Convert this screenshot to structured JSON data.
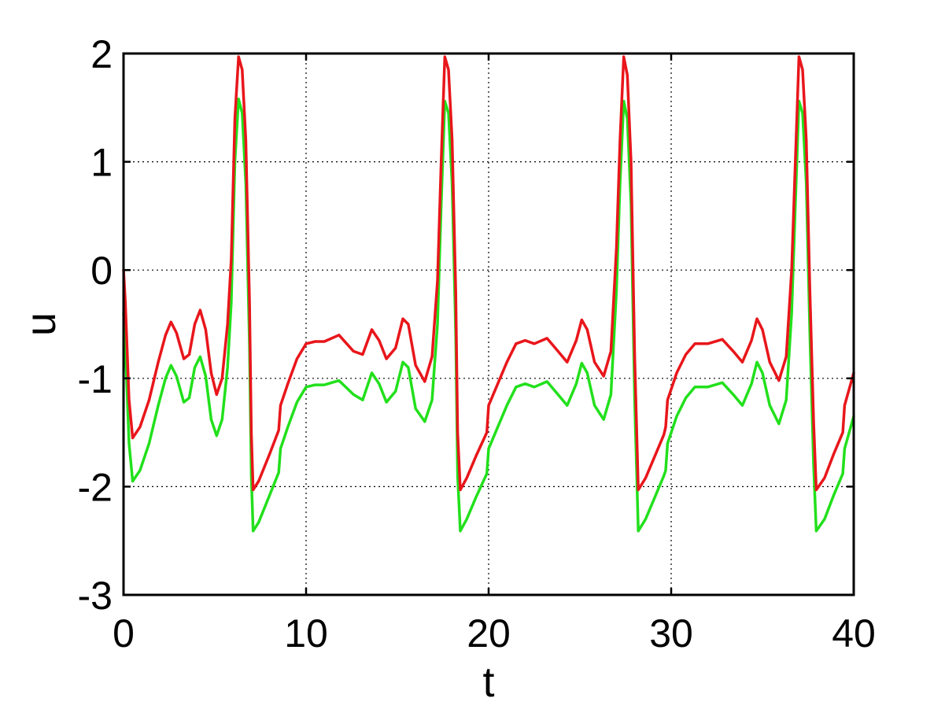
{
  "chart_data": {
    "type": "line",
    "title": "",
    "xlabel": "t",
    "ylabel": "u",
    "xlim": [
      0,
      40
    ],
    "ylim": [
      -3,
      2
    ],
    "xticks": [
      0,
      10,
      20,
      30,
      40
    ],
    "yticks": [
      -3,
      -2,
      -1,
      0,
      1,
      2
    ],
    "x_tick_labels": [
      "0",
      "10",
      "20",
      "30",
      "40"
    ],
    "y_tick_labels": [
      "-3",
      "-2",
      "-1",
      "0",
      "1",
      "2"
    ],
    "grid": true,
    "legend": "none",
    "series": [
      {
        "color": "#e8161b",
        "points": [
          [
            0,
            0
          ],
          [
            0.1,
            -0.3
          ],
          [
            0.3,
            -1.2
          ],
          [
            0.5,
            -1.55
          ],
          [
            0.9,
            -1.45
          ],
          [
            1.4,
            -1.2
          ],
          [
            1.9,
            -0.85
          ],
          [
            2.3,
            -0.6
          ],
          [
            2.6,
            -0.48
          ],
          [
            2.9,
            -0.58
          ],
          [
            3.3,
            -0.82
          ],
          [
            3.6,
            -0.78
          ],
          [
            3.9,
            -0.5
          ],
          [
            4.2,
            -0.37
          ],
          [
            4.5,
            -0.55
          ],
          [
            4.8,
            -0.95
          ],
          [
            5.1,
            -1.15
          ],
          [
            5.4,
            -1.0
          ],
          [
            5.7,
            -0.5
          ],
          [
            5.9,
            0.1
          ],
          [
            6.1,
            1.4
          ],
          [
            6.3,
            1.97
          ],
          [
            6.5,
            1.85
          ],
          [
            6.7,
            1.2
          ],
          [
            6.9,
            -0.3
          ],
          [
            7.0,
            -1.5
          ],
          [
            7.1,
            -2.03
          ],
          [
            7.4,
            -1.95
          ],
          [
            8.0,
            -1.7
          ],
          [
            8.5,
            -1.48
          ],
          [
            8.6,
            -1.25
          ],
          [
            9.0,
            -1.05
          ],
          [
            9.5,
            -0.82
          ],
          [
            10.0,
            -0.68
          ],
          [
            10.5,
            -0.66
          ],
          [
            11.0,
            -0.66
          ],
          [
            11.8,
            -0.6
          ],
          [
            12.6,
            -0.75
          ],
          [
            13.1,
            -0.78
          ],
          [
            13.6,
            -0.55
          ],
          [
            14.0,
            -0.65
          ],
          [
            14.4,
            -0.82
          ],
          [
            14.9,
            -0.72
          ],
          [
            15.3,
            -0.45
          ],
          [
            15.6,
            -0.5
          ],
          [
            16.0,
            -0.88
          ],
          [
            16.5,
            -1.03
          ],
          [
            16.9,
            -0.8
          ],
          [
            17.2,
            -0.1
          ],
          [
            17.4,
            1.0
          ],
          [
            17.6,
            1.97
          ],
          [
            17.8,
            1.85
          ],
          [
            18.0,
            1.2
          ],
          [
            18.2,
            -0.2
          ],
          [
            18.3,
            -1.5
          ],
          [
            18.45,
            -2.03
          ],
          [
            18.8,
            -1.92
          ],
          [
            19.3,
            -1.72
          ],
          [
            19.9,
            -1.5
          ],
          [
            20.0,
            -1.25
          ],
          [
            20.5,
            -1.05
          ],
          [
            21.0,
            -0.85
          ],
          [
            21.5,
            -0.68
          ],
          [
            22.0,
            -0.65
          ],
          [
            22.5,
            -0.68
          ],
          [
            23.2,
            -0.63
          ],
          [
            23.8,
            -0.75
          ],
          [
            24.3,
            -0.85
          ],
          [
            24.8,
            -0.65
          ],
          [
            25.1,
            -0.46
          ],
          [
            25.4,
            -0.55
          ],
          [
            25.8,
            -0.85
          ],
          [
            26.3,
            -0.98
          ],
          [
            26.7,
            -0.75
          ],
          [
            27.0,
            0.2
          ],
          [
            27.2,
            1.2
          ],
          [
            27.4,
            1.97
          ],
          [
            27.6,
            1.8
          ],
          [
            27.8,
            1.0
          ],
          [
            28.0,
            -0.8
          ],
          [
            28.2,
            -2.03
          ],
          [
            28.6,
            -1.92
          ],
          [
            29.1,
            -1.72
          ],
          [
            29.6,
            -1.52
          ],
          [
            29.7,
            -1.45
          ],
          [
            29.8,
            -1.2
          ],
          [
            30.3,
            -0.95
          ],
          [
            30.8,
            -0.78
          ],
          [
            31.3,
            -0.68
          ],
          [
            32.0,
            -0.68
          ],
          [
            32.8,
            -0.64
          ],
          [
            33.4,
            -0.75
          ],
          [
            33.9,
            -0.85
          ],
          [
            34.4,
            -0.65
          ],
          [
            34.7,
            -0.45
          ],
          [
            35.0,
            -0.55
          ],
          [
            35.4,
            -0.85
          ],
          [
            35.9,
            -1.02
          ],
          [
            36.3,
            -0.8
          ],
          [
            36.6,
            0.0
          ],
          [
            36.8,
            1.0
          ],
          [
            37.0,
            1.97
          ],
          [
            37.2,
            1.85
          ],
          [
            37.4,
            1.2
          ],
          [
            37.6,
            -0.2
          ],
          [
            37.8,
            -1.4
          ],
          [
            37.95,
            -2.03
          ],
          [
            38.4,
            -1.92
          ],
          [
            38.9,
            -1.7
          ],
          [
            39.4,
            -1.5
          ],
          [
            39.5,
            -1.25
          ],
          [
            40.0,
            -0.95
          ]
        ]
      },
      {
        "color": "#22e01c",
        "points": [
          [
            0,
            -0.4
          ],
          [
            0.1,
            -0.7
          ],
          [
            0.3,
            -1.6
          ],
          [
            0.5,
            -1.95
          ],
          [
            0.9,
            -1.85
          ],
          [
            1.4,
            -1.6
          ],
          [
            1.9,
            -1.25
          ],
          [
            2.3,
            -1.0
          ],
          [
            2.6,
            -0.88
          ],
          [
            2.9,
            -0.98
          ],
          [
            3.3,
            -1.22
          ],
          [
            3.6,
            -1.18
          ],
          [
            3.9,
            -0.9
          ],
          [
            4.2,
            -0.8
          ],
          [
            4.5,
            -0.98
          ],
          [
            4.8,
            -1.38
          ],
          [
            5.1,
            -1.53
          ],
          [
            5.4,
            -1.38
          ],
          [
            5.7,
            -0.9
          ],
          [
            5.9,
            -0.3
          ],
          [
            6.1,
            1.0
          ],
          [
            6.3,
            1.58
          ],
          [
            6.5,
            1.45
          ],
          [
            6.7,
            0.8
          ],
          [
            6.9,
            -0.7
          ],
          [
            7.0,
            -1.9
          ],
          [
            7.1,
            -2.41
          ],
          [
            7.4,
            -2.33
          ],
          [
            8.0,
            -2.08
          ],
          [
            8.5,
            -1.87
          ],
          [
            8.6,
            -1.65
          ],
          [
            9.0,
            -1.45
          ],
          [
            9.5,
            -1.22
          ],
          [
            10.0,
            -1.08
          ],
          [
            10.5,
            -1.06
          ],
          [
            11.0,
            -1.06
          ],
          [
            11.8,
            -1.02
          ],
          [
            12.6,
            -1.15
          ],
          [
            13.1,
            -1.2
          ],
          [
            13.6,
            -0.95
          ],
          [
            14.0,
            -1.05
          ],
          [
            14.4,
            -1.22
          ],
          [
            14.9,
            -1.12
          ],
          [
            15.3,
            -0.85
          ],
          [
            15.6,
            -0.9
          ],
          [
            16.0,
            -1.28
          ],
          [
            16.5,
            -1.4
          ],
          [
            16.9,
            -1.2
          ],
          [
            17.2,
            -0.5
          ],
          [
            17.4,
            0.6
          ],
          [
            17.6,
            1.56
          ],
          [
            17.8,
            1.45
          ],
          [
            18.0,
            0.8
          ],
          [
            18.2,
            -0.6
          ],
          [
            18.3,
            -1.9
          ],
          [
            18.45,
            -2.41
          ],
          [
            18.8,
            -2.3
          ],
          [
            19.3,
            -2.1
          ],
          [
            19.9,
            -1.88
          ],
          [
            20.0,
            -1.65
          ],
          [
            20.5,
            -1.45
          ],
          [
            21.0,
            -1.25
          ],
          [
            21.5,
            -1.08
          ],
          [
            22.0,
            -1.05
          ],
          [
            22.5,
            -1.08
          ],
          [
            23.2,
            -1.03
          ],
          [
            23.8,
            -1.15
          ],
          [
            24.3,
            -1.25
          ],
          [
            24.8,
            -1.05
          ],
          [
            25.1,
            -0.86
          ],
          [
            25.4,
            -0.95
          ],
          [
            25.8,
            -1.25
          ],
          [
            26.3,
            -1.38
          ],
          [
            26.7,
            -1.15
          ],
          [
            27.0,
            -0.2
          ],
          [
            27.2,
            0.8
          ],
          [
            27.4,
            1.56
          ],
          [
            27.6,
            1.4
          ],
          [
            27.8,
            0.6
          ],
          [
            28.0,
            -1.2
          ],
          [
            28.2,
            -2.41
          ],
          [
            28.6,
            -2.3
          ],
          [
            29.1,
            -2.1
          ],
          [
            29.6,
            -1.9
          ],
          [
            29.7,
            -1.85
          ],
          [
            29.8,
            -1.6
          ],
          [
            30.3,
            -1.35
          ],
          [
            30.8,
            -1.18
          ],
          [
            31.3,
            -1.08
          ],
          [
            32.0,
            -1.08
          ],
          [
            32.8,
            -1.04
          ],
          [
            33.4,
            -1.15
          ],
          [
            33.9,
            -1.25
          ],
          [
            34.4,
            -1.05
          ],
          [
            34.7,
            -0.85
          ],
          [
            35.0,
            -0.95
          ],
          [
            35.4,
            -1.25
          ],
          [
            35.9,
            -1.42
          ],
          [
            36.3,
            -1.2
          ],
          [
            36.6,
            -0.4
          ],
          [
            36.8,
            0.6
          ],
          [
            37.0,
            1.56
          ],
          [
            37.2,
            1.45
          ],
          [
            37.4,
            0.8
          ],
          [
            37.6,
            -0.6
          ],
          [
            37.8,
            -1.8
          ],
          [
            37.95,
            -2.41
          ],
          [
            38.4,
            -2.3
          ],
          [
            38.9,
            -2.08
          ],
          [
            39.4,
            -1.88
          ],
          [
            39.5,
            -1.65
          ],
          [
            40.0,
            -1.35
          ]
        ]
      }
    ]
  }
}
